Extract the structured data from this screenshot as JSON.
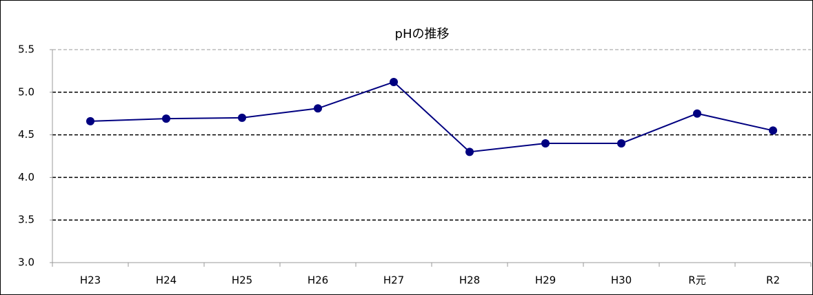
{
  "chart_data": {
    "type": "line",
    "title": "pHの推移",
    "categories": [
      "H23",
      "H24",
      "H25",
      "H26",
      "H27",
      "H28",
      "H29",
      "H30",
      "R元",
      "R2"
    ],
    "series": [
      {
        "name": "pH",
        "color": "#000080",
        "values": [
          4.66,
          4.69,
          4.7,
          4.81,
          5.12,
          4.3,
          4.4,
          4.4,
          4.75,
          4.55
        ]
      }
    ],
    "ylim": [
      3.0,
      5.5
    ],
    "yticks": [
      {
        "value": 3,
        "label": "3.0"
      },
      3.5,
      {
        "value": 4,
        "label": "4.0"
      },
      4.5,
      {
        "value": 5,
        "label": "5.0"
      },
      5.5
    ],
    "grid": true,
    "legend": false
  }
}
